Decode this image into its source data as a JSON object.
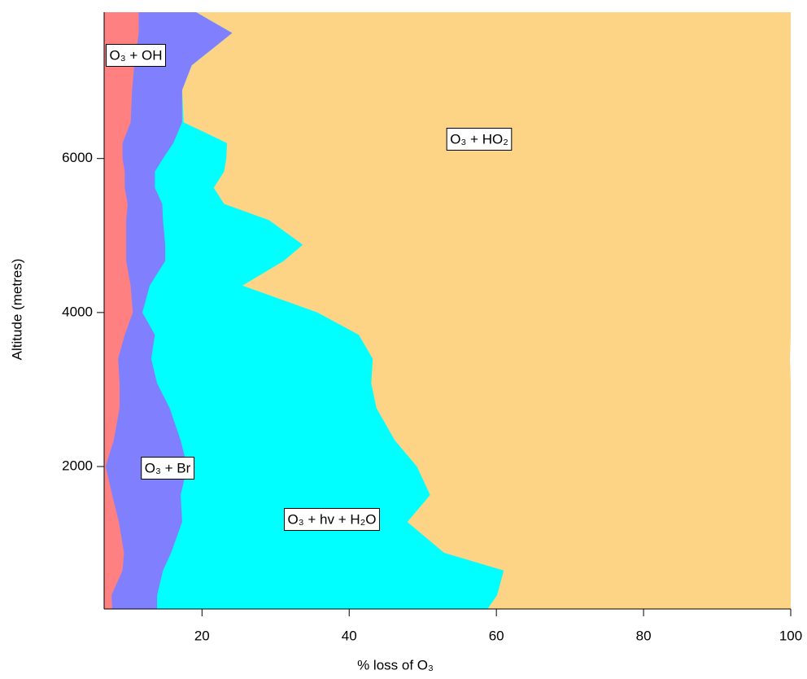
{
  "chart_data": {
    "type": "stacked_area_horizontal",
    "xlabel": "% loss of O₃",
    "ylabel": "Altitude (metres)",
    "y": [
      150,
      330,
      650,
      880,
      1280,
      1630,
      2000,
      2340,
      2760,
      3080,
      3400,
      3710,
      4000,
      4350,
      4670,
      4880,
      5200,
      5410,
      5620,
      5830,
      6000,
      6200,
      6470,
      6890,
      7210,
      7630,
      7900
    ],
    "series": [
      {
        "name": "O₃ + OH",
        "color": "#ff8080",
        "values": [
          7.8,
          7.7,
          9.2,
          9.4,
          8.7,
          7.8,
          6.9,
          8.0,
          8.8,
          8.8,
          8.6,
          9.5,
          10.6,
          10.3,
          9.7,
          9.7,
          9.7,
          9.9,
          9.5,
          9.5,
          9.2,
          9.2,
          10.3,
          10.5,
          10.8,
          11.4,
          11.4
        ]
      },
      {
        "name": "O₃ + Br",
        "color": "#8080ff",
        "values": [
          6.1,
          6.2,
          5.5,
          6.4,
          8.6,
          9.3,
          11.1,
          9.1,
          6.8,
          5.1,
          4.5,
          4.1,
          1.3,
          2.6,
          5.3,
          5.3,
          5.0,
          4.7,
          4.1,
          4.1,
          5.5,
          6.9,
          7.0,
          6.8,
          7.8,
          12.7,
          7.8
        ]
      },
      {
        "name": "O₃ + hv + H₂O",
        "color": "#00ffff",
        "values": [
          44.9,
          46.2,
          46.3,
          37.1,
          30.6,
          33.9,
          31.2,
          29.1,
          28.1,
          29.1,
          30.1,
          27.7,
          23.8,
          12.6,
          16.1,
          18.7,
          14.4,
          8.4,
          8.0,
          9.4,
          8.6,
          7.3,
          0.2,
          0,
          0,
          0,
          0
        ]
      },
      {
        "name": "O₃ + HO₂",
        "color": "#fdd385",
        "values": [
          41.2,
          39.9,
          39.0,
          47.1,
          52.1,
          49.0,
          50.8,
          53.8,
          56.3,
          57.0,
          56.7,
          58.7,
          64.3,
          74.6,
          68.9,
          66.3,
          70.9,
          77.0,
          78.5,
          77.0,
          76.7,
          76.7,
          82.6,
          82.8,
          81.4,
          75.9,
          80.9
        ]
      }
    ],
    "xlim": [
      6.7,
      100
    ],
    "xticks": [
      20,
      40,
      60,
      80,
      100
    ],
    "ylim": [
      150,
      7900
    ],
    "yticks": [
      2000,
      4000,
      6000
    ]
  }
}
